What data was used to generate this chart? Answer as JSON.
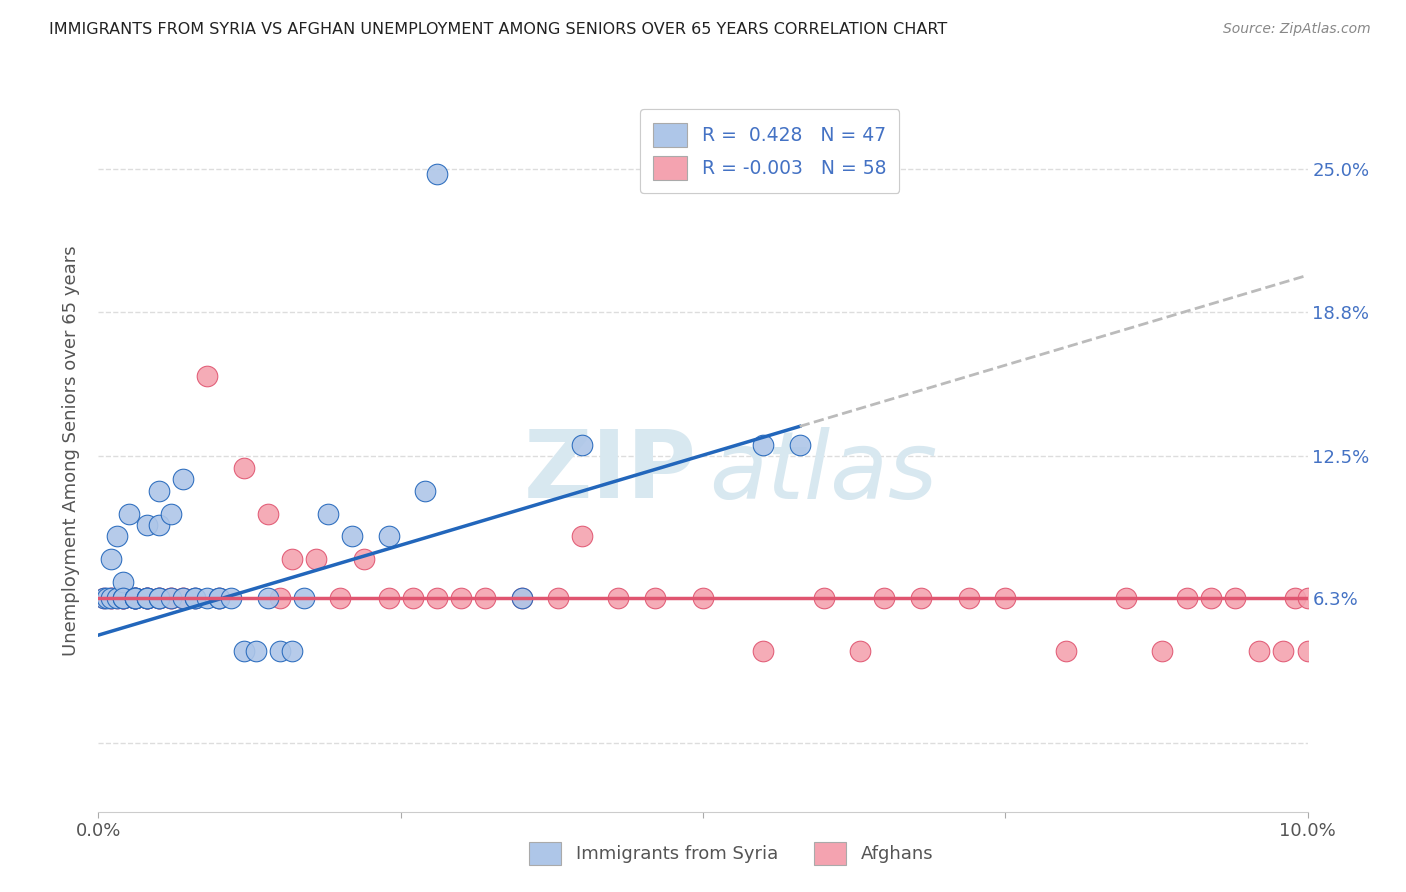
{
  "title": "IMMIGRANTS FROM SYRIA VS AFGHAN UNEMPLOYMENT AMONG SENIORS OVER 65 YEARS CORRELATION CHART",
  "source": "Source: ZipAtlas.com",
  "ylabel": "Unemployment Among Seniors over 65 years",
  "xmin": 0.0,
  "xmax": 0.1,
  "ymin": -0.03,
  "ymax": 0.285,
  "ytick_vals": [
    0.0,
    0.063,
    0.125,
    0.188,
    0.25
  ],
  "ytick_labels": [
    "",
    "6.3%",
    "12.5%",
    "18.8%",
    "25.0%"
  ],
  "xtick_vals": [
    0.0,
    0.025,
    0.05,
    0.075,
    0.1
  ],
  "xtick_labels": [
    "0.0%",
    "",
    "",
    "",
    "10.0%"
  ],
  "color_syria": "#aec6e8",
  "color_afghan": "#f4a3b0",
  "line_color_syria": "#2266bb",
  "line_color_afghan": "#e05570",
  "line_color_extrapolate": "#bbbbbb",
  "background_color": "#ffffff",
  "grid_color": "#dddddd",
  "syria_x": [
    0.0005,
    0.0007,
    0.001,
    0.001,
    0.0015,
    0.0015,
    0.002,
    0.002,
    0.002,
    0.0025,
    0.003,
    0.003,
    0.003,
    0.003,
    0.004,
    0.004,
    0.004,
    0.004,
    0.005,
    0.005,
    0.005,
    0.005,
    0.006,
    0.006,
    0.007,
    0.007,
    0.008,
    0.008,
    0.009,
    0.01,
    0.01,
    0.011,
    0.012,
    0.013,
    0.014,
    0.015,
    0.016,
    0.017,
    0.019,
    0.021,
    0.024,
    0.027,
    0.028,
    0.035,
    0.04,
    0.055,
    0.058
  ],
  "syria_y": [
    0.063,
    0.063,
    0.08,
    0.063,
    0.063,
    0.09,
    0.063,
    0.07,
    0.063,
    0.1,
    0.063,
    0.063,
    0.063,
    0.063,
    0.095,
    0.063,
    0.063,
    0.063,
    0.11,
    0.063,
    0.095,
    0.063,
    0.063,
    0.1,
    0.115,
    0.063,
    0.063,
    0.063,
    0.063,
    0.063,
    0.063,
    0.063,
    0.04,
    0.04,
    0.063,
    0.04,
    0.04,
    0.063,
    0.1,
    0.09,
    0.09,
    0.11,
    0.248,
    0.063,
    0.13,
    0.13,
    0.13
  ],
  "afghan_x": [
    0.0005,
    0.001,
    0.001,
    0.0015,
    0.002,
    0.002,
    0.002,
    0.003,
    0.003,
    0.003,
    0.004,
    0.004,
    0.004,
    0.005,
    0.005,
    0.006,
    0.006,
    0.007,
    0.007,
    0.008,
    0.009,
    0.01,
    0.012,
    0.014,
    0.015,
    0.016,
    0.018,
    0.02,
    0.022,
    0.024,
    0.026,
    0.028,
    0.03,
    0.032,
    0.035,
    0.038,
    0.04,
    0.043,
    0.046,
    0.05,
    0.055,
    0.06,
    0.063,
    0.065,
    0.068,
    0.072,
    0.075,
    0.08,
    0.085,
    0.088,
    0.09,
    0.092,
    0.094,
    0.096,
    0.098,
    0.099,
    0.1,
    0.1
  ],
  "afghan_y": [
    0.063,
    0.063,
    0.063,
    0.063,
    0.063,
    0.063,
    0.063,
    0.063,
    0.063,
    0.063,
    0.063,
    0.063,
    0.063,
    0.063,
    0.063,
    0.063,
    0.063,
    0.063,
    0.063,
    0.063,
    0.16,
    0.063,
    0.12,
    0.1,
    0.063,
    0.08,
    0.08,
    0.063,
    0.08,
    0.063,
    0.063,
    0.063,
    0.063,
    0.063,
    0.063,
    0.063,
    0.09,
    0.063,
    0.063,
    0.063,
    0.04,
    0.063,
    0.04,
    0.063,
    0.063,
    0.063,
    0.063,
    0.04,
    0.063,
    0.04,
    0.063,
    0.063,
    0.063,
    0.04,
    0.04,
    0.063,
    0.04,
    0.063
  ],
  "syria_line_x0": 0.0,
  "syria_line_y0": 0.047,
  "syria_line_x1": 0.058,
  "syria_line_y1": 0.138,
  "afghan_line_y": 0.063,
  "watermark_zip": "ZIP",
  "watermark_atlas": "atlas"
}
